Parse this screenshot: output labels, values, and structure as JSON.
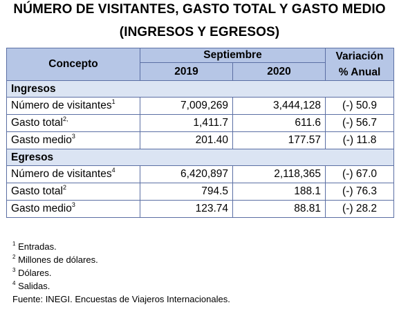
{
  "title_line1": "NÚMERO DE VISITANTES, GASTO TOTAL Y GASTO MEDIO",
  "title_line2": "(INGRESOS Y EGRESOS)",
  "header": {
    "concepto": "Concepto",
    "month": "Septiembre",
    "year1": "2019",
    "year2": "2020",
    "variation_line1": "Variación",
    "variation_line2": "% Anual"
  },
  "sections": [
    {
      "name": "Ingresos",
      "rows": [
        {
          "label": "Número de visitantes",
          "sup": "1",
          "v2019": "7,009,269",
          "v2020": "3,444,128",
          "var": "(-) 50.9"
        },
        {
          "label": "Gasto total",
          "sup": "2,",
          "v2019": "1,411.7",
          "v2020": "611.6",
          "var": "(-) 56.7"
        },
        {
          "label": "Gasto medio",
          "sup": "3",
          "v2019": "201.40",
          "v2020": "177.57",
          "var": "(-) 11.8"
        }
      ]
    },
    {
      "name": "Egresos",
      "rows": [
        {
          "label": "Número de visitantes",
          "sup": "4",
          "v2019": "6,420,897",
          "v2020": "2,118,365",
          "var": "(-) 67.0"
        },
        {
          "label": "Gasto total",
          "sup": "2",
          "v2019": "794.5",
          "v2020": "188.1",
          "var": "(-) 76.3"
        },
        {
          "label": "Gasto medio",
          "sup": "3",
          "v2019": "123.74",
          "v2020": "88.81",
          "var": "(-) 28.2"
        }
      ]
    }
  ],
  "footnotes": [
    {
      "mark": "1",
      "text": "Entradas."
    },
    {
      "mark": "2",
      "text": "Millones de dólares."
    },
    {
      "mark": "3",
      "text": "Dólares."
    },
    {
      "mark": "4",
      "text": "Salidas."
    }
  ],
  "source": "Fuente: INEGI. Encuestas de Viajeros Internacionales.",
  "colors": {
    "header_fill": "#b6c6e6",
    "section_fill": "#dbe4f3",
    "border": "#5a6ea3"
  }
}
